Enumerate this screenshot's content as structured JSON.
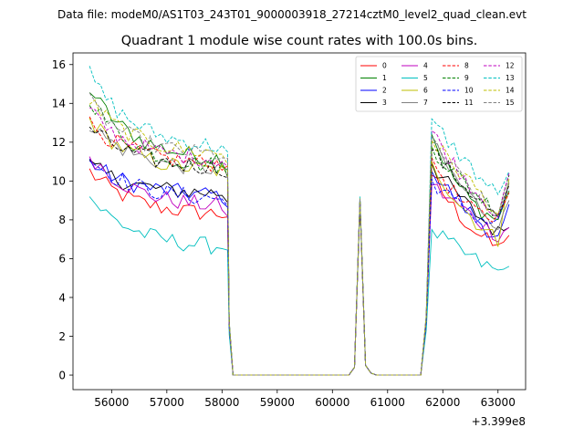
{
  "header": {
    "suptitle": "Data file: modeM0/AS1T03_243T01_9000003918_27214cztM0_level2_quad_clean.evt"
  },
  "chart_data": {
    "type": "line",
    "title": "Quadrant 1 module wise count rates with 100.0s bins.",
    "xlabel": "",
    "ylabel": "",
    "x_offset_label": "+3.399e8",
    "xlim": [
      55300,
      63500
    ],
    "ylim": [
      -0.75,
      16.6
    ],
    "xticks": [
      56000,
      57000,
      58000,
      59000,
      60000,
      61000,
      62000,
      63000
    ],
    "yticks": [
      0,
      2,
      4,
      6,
      8,
      10,
      12,
      14,
      16
    ],
    "grid": false,
    "legend_position": "top-right",
    "legend_columns": 4,
    "bin_seconds": 100,
    "segments": [
      {
        "x_start": 55600,
        "x_end": 58100,
        "shape": "active"
      },
      {
        "x_start": 58200,
        "x_end": 60300,
        "shape": "zero"
      },
      {
        "x_start": 60400,
        "x_end": 60600,
        "shape": "spike"
      },
      {
        "x_start": 60700,
        "x_end": 61600,
        "shape": "zero"
      },
      {
        "x_start": 61700,
        "x_end": 63200,
        "shape": "active"
      }
    ],
    "series": [
      {
        "name": "0",
        "color": "#ff0000",
        "dash": "solid",
        "start": 10.5,
        "level": 8.2,
        "mid_level": 5.0,
        "mid_peak": 9.0,
        "recovery_peak": 10.3,
        "recovery_level": 8.0,
        "end_dip": 6.5,
        "final": 7.2
      },
      {
        "name": "1",
        "color": "#008000",
        "dash": "solid",
        "start": 14.8,
        "level": 11.0,
        "mid_level": 5.5,
        "mid_peak": 9.1,
        "recovery_peak": 12.4,
        "recovery_level": 9.3,
        "end_dip": 8.0,
        "final": 9.5
      },
      {
        "name": "2",
        "color": "#0000ff",
        "dash": "solid",
        "start": 11.0,
        "level": 9.2,
        "mid_level": 5.0,
        "mid_peak": 9.0,
        "recovery_peak": 10.5,
        "recovery_level": 8.8,
        "end_dip": 7.0,
        "final": 8.8
      },
      {
        "name": "3",
        "color": "#000000",
        "dash": "solid",
        "start": 10.8,
        "level": 9.3,
        "mid_level": 5.0,
        "mid_peak": 9.0,
        "recovery_peak": 10.9,
        "recovery_level": 9.0,
        "end_dip": 7.3,
        "final": 7.6
      },
      {
        "name": "4",
        "color": "#bf00bf",
        "dash": "solid",
        "start": 11.4,
        "level": 8.6,
        "mid_level": 5.0,
        "mid_peak": 9.0,
        "recovery_peak": 9.8,
        "recovery_level": 8.6,
        "end_dip": 7.2,
        "final": 7.6
      },
      {
        "name": "5",
        "color": "#00bfbf",
        "dash": "solid",
        "start": 9.2,
        "level": 6.5,
        "mid_level": 4.2,
        "mid_peak": 8.8,
        "recovery_peak": 7.5,
        "recovery_level": 6.3,
        "end_dip": 5.3,
        "final": 5.6
      },
      {
        "name": "6",
        "color": "#bfbf00",
        "dash": "solid",
        "start": 13.2,
        "level": 10.4,
        "mid_level": 5.3,
        "mid_peak": 8.9,
        "recovery_peak": 11.0,
        "recovery_level": 8.6,
        "end_dip": 6.9,
        "final": 10.1
      },
      {
        "name": "7",
        "color": "#808080",
        "dash": "solid",
        "start": 13.0,
        "level": 10.5,
        "mid_level": 5.3,
        "mid_peak": 9.0,
        "recovery_peak": 12.0,
        "recovery_level": 9.6,
        "end_dip": 7.8,
        "final": 9.0
      },
      {
        "name": "8",
        "color": "#ff0000",
        "dash": "dashed",
        "start": 13.0,
        "level": 10.8,
        "mid_level": 5.4,
        "mid_peak": 9.0,
        "recovery_peak": 11.2,
        "recovery_level": 8.7,
        "end_dip": 8.1,
        "final": 9.4
      },
      {
        "name": "9",
        "color": "#008000",
        "dash": "dashed",
        "start": 14.3,
        "level": 10.6,
        "mid_level": 5.5,
        "mid_peak": 9.1,
        "recovery_peak": 11.8,
        "recovery_level": 10.0,
        "end_dip": 8.4,
        "final": 10.3
      },
      {
        "name": "10",
        "color": "#0000ff",
        "dash": "dashed",
        "start": 11.2,
        "level": 9.0,
        "mid_level": 5.0,
        "mid_peak": 9.1,
        "recovery_peak": 10.1,
        "recovery_level": 8.5,
        "end_dip": 7.8,
        "final": 9.9
      },
      {
        "name": "11",
        "color": "#000000",
        "dash": "dashed",
        "start": 12.8,
        "level": 10.6,
        "mid_level": 5.3,
        "mid_peak": 9.0,
        "recovery_peak": 11.6,
        "recovery_level": 9.9,
        "end_dip": 8.0,
        "final": 9.8
      },
      {
        "name": "12",
        "color": "#bf00bf",
        "dash": "dashed",
        "start": 13.6,
        "level": 11.0,
        "mid_level": 5.4,
        "mid_peak": 9.0,
        "recovery_peak": 12.6,
        "recovery_level": 10.3,
        "end_dip": 8.3,
        "final": 10.4
      },
      {
        "name": "13",
        "color": "#00bfbf",
        "dash": "dashed",
        "start": 15.5,
        "level": 11.6,
        "mid_level": 5.6,
        "mid_peak": 9.2,
        "recovery_peak": 13.2,
        "recovery_level": 11.2,
        "end_dip": 9.2,
        "final": 10.5
      },
      {
        "name": "14",
        "color": "#bfbf00",
        "dash": "dashed",
        "start": 14.2,
        "level": 11.3,
        "mid_level": 5.5,
        "mid_peak": 9.1,
        "recovery_peak": 12.1,
        "recovery_level": 10.4,
        "end_dip": 8.3,
        "final": 9.9
      },
      {
        "name": "15",
        "color": "#808080",
        "dash": "dashed",
        "start": 14.1,
        "level": 11.2,
        "mid_level": 5.5,
        "mid_peak": 9.1,
        "recovery_peak": 12.3,
        "recovery_level": 10.0,
        "end_dip": 8.2,
        "final": 10.0
      }
    ]
  }
}
